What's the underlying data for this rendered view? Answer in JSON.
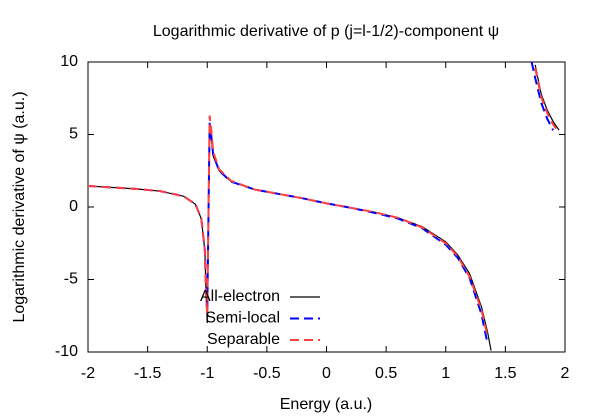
{
  "chart_data": {
    "type": "line",
    "title": "Logarithmic derivative of p (j=l-1/2)-component ψ",
    "x_label": "Energy (a.u.)",
    "y_label": "Logarithmic derivative of ψ (a.u.)",
    "x": [
      -2,
      -1.8,
      -1.6,
      -1.4,
      -1.2,
      -1.1,
      -1.05,
      -1.02,
      -1.01,
      -1.0,
      -0.98,
      -0.97,
      -0.95,
      -0.9,
      -0.8,
      -0.6,
      -0.4,
      -0.2,
      0,
      0.2,
      0.4,
      0.6,
      0.8,
      1.0,
      1.1,
      1.2,
      1.3,
      1.35,
      1.38,
      1.4,
      1.6,
      1.72,
      1.75,
      1.8,
      1.85,
      1.9,
      1.95
    ],
    "series": [
      {
        "name": "All-electron",
        "color": "#000000",
        "style": "solid",
        "values": [
          1.45,
          1.35,
          1.25,
          1.1,
          0.75,
          0.2,
          -0.8,
          -3,
          -6,
          -8,
          5.5,
          5,
          3.5,
          2.5,
          1.75,
          1.2,
          0.9,
          0.6,
          0.25,
          -0.05,
          -0.35,
          -0.75,
          -1.35,
          -2.4,
          -3.3,
          -4.6,
          -6.9,
          -8.6,
          -9.9,
          null,
          null,
          null,
          9.8,
          7.8,
          6.7,
          5.9,
          5.3
        ]
      },
      {
        "name": "Semi-local",
        "color": "#0000ff",
        "style": "dashed",
        "values": [
          1.45,
          1.35,
          1.25,
          1.1,
          0.75,
          0.2,
          -0.8,
          -3,
          -6,
          -7.3,
          5.8,
          5.2,
          3.6,
          2.5,
          1.75,
          1.2,
          0.9,
          0.6,
          0.25,
          -0.05,
          -0.4,
          -0.8,
          -1.45,
          -2.6,
          -3.5,
          -4.9,
          -7.4,
          -9.4,
          null,
          null,
          null,
          10,
          8.9,
          7.2,
          6.1,
          5.3,
          null
        ]
      },
      {
        "name": "Separable",
        "color": "#ff4040",
        "style": "dashed",
        "values": [
          1.45,
          1.35,
          1.25,
          1.1,
          0.75,
          0.2,
          -0.8,
          -3,
          -6,
          -7.5,
          6.3,
          5.6,
          3.8,
          2.6,
          1.8,
          1.2,
          0.9,
          0.6,
          0.25,
          -0.05,
          -0.35,
          -0.75,
          -1.4,
          -2.5,
          -3.4,
          -4.8,
          -7.1,
          -8.9,
          null,
          null,
          null,
          null,
          9.6,
          7.6,
          6.5,
          5.7,
          5.1
        ]
      }
    ],
    "xlim": [
      -2,
      2
    ],
    "ylim": [
      -10,
      10
    ],
    "xticks": [
      -2,
      -1.5,
      -1,
      -0.5,
      0,
      0.5,
      1,
      1.5,
      2
    ],
    "yticks": [
      -10,
      -5,
      0,
      5,
      10
    ],
    "grid": false,
    "legend": "lower-left"
  }
}
